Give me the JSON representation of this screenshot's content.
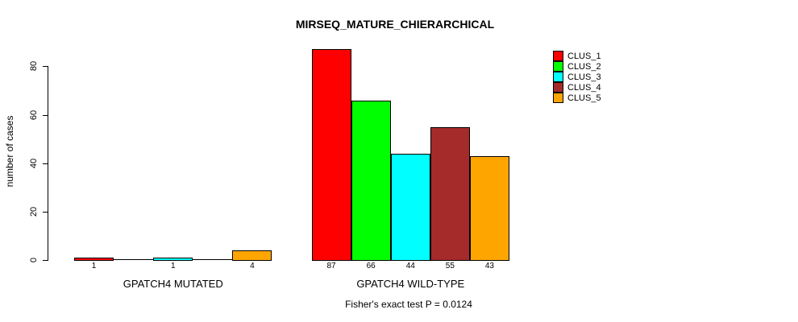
{
  "chart_data": {
    "type": "bar",
    "title": "MIRSEQ_MATURE_CHIERARCHICAL",
    "ylabel": "number of cases",
    "xlabel": "",
    "subtitle": "Fisher's exact test P = 0.0124",
    "y_ticks": [
      0,
      20,
      40,
      60,
      80
    ],
    "ylim": [
      0,
      87
    ],
    "grid": false,
    "legend_position": "top-right",
    "legend": [
      {
        "label": "CLUS_1",
        "color": "#FF0000"
      },
      {
        "label": "CLUS_2",
        "color": "#00FF00"
      },
      {
        "label": "CLUS_3",
        "color": "#00FFFF"
      },
      {
        "label": "CLUS_4",
        "color": "#A52A2A"
      },
      {
        "label": "CLUS_5",
        "color": "#FFA500"
      }
    ],
    "groups": [
      {
        "label": "GPATCH4 MUTATED",
        "bars": [
          {
            "cluster": "CLUS_1",
            "value": 1,
            "label": "1",
            "color": "#FF0000"
          },
          {
            "cluster": "CLUS_2",
            "value": 0,
            "label": "",
            "color": "#00FF00"
          },
          {
            "cluster": "CLUS_3",
            "value": 1,
            "label": "1",
            "color": "#00FFFF"
          },
          {
            "cluster": "CLUS_4",
            "value": 0,
            "label": "",
            "color": "#A52A2A"
          },
          {
            "cluster": "CLUS_5",
            "value": 4,
            "label": "4",
            "color": "#FFA500"
          }
        ]
      },
      {
        "label": "GPATCH4 WILD-TYPE",
        "bars": [
          {
            "cluster": "CLUS_1",
            "value": 87,
            "label": "87",
            "color": "#FF0000"
          },
          {
            "cluster": "CLUS_2",
            "value": 66,
            "label": "66",
            "color": "#00FF00"
          },
          {
            "cluster": "CLUS_3",
            "value": 44,
            "label": "44",
            "color": "#00FFFF"
          },
          {
            "cluster": "CLUS_4",
            "value": 55,
            "label": "55",
            "color": "#A52A2A"
          },
          {
            "cluster": "CLUS_5",
            "value": 43,
            "label": "43",
            "color": "#FFA500"
          }
        ]
      }
    ]
  }
}
